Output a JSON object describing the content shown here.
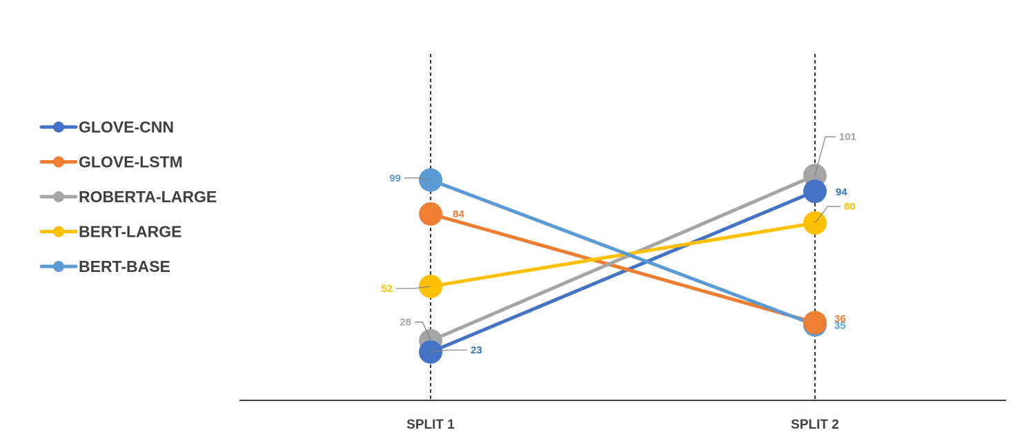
{
  "chart_data": {
    "type": "line",
    "categories": [
      "SPLIT 1",
      "SPLIT 2"
    ],
    "series": [
      {
        "name": "GLOVE-CNN",
        "values": [
          23,
          94
        ],
        "color": "#4472C4",
        "label_color": "#2E75B6"
      },
      {
        "name": "GLOVE-LSTM",
        "values": [
          84,
          36
        ],
        "color": "#ED7D31",
        "label_color": "#ED7D31"
      },
      {
        "name": "ROBERTA-LARGE",
        "values": [
          28,
          101
        ],
        "color": "#A5A5A5",
        "label_color": "#A5A5A5"
      },
      {
        "name": "BERT-LARGE",
        "values": [
          52,
          80
        ],
        "color": "#FFC000",
        "label_color": "#FFC000"
      },
      {
        "name": "BERT-BASE",
        "values": [
          99,
          35
        ],
        "color": "#5B9BD5",
        "label_color": "#5B9BD5"
      }
    ],
    "legend_position": "left",
    "grid": false,
    "ylim": [
      0,
      120
    ]
  }
}
